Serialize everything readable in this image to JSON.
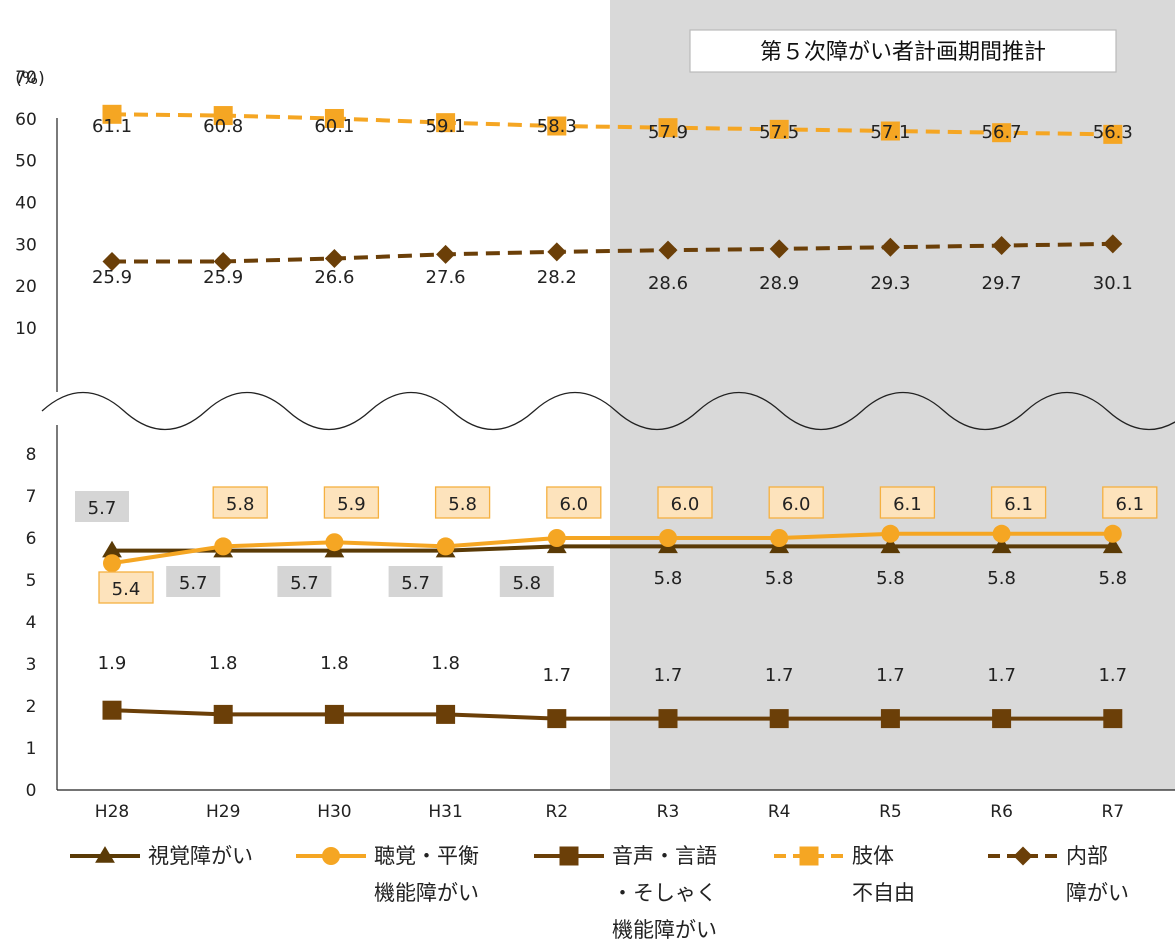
{
  "chart_data": {
    "type": "line",
    "title": "",
    "unit": "(%)",
    "projection_label": "第５次障がい者計画期間推計",
    "projection_start": "R3",
    "categories": [
      "H28",
      "H29",
      "H30",
      "H31",
      "R2",
      "R3",
      "R4",
      "R5",
      "R6",
      "R7"
    ],
    "y_ticks_upper": [
      "70",
      "60",
      "50",
      "40",
      "30",
      "20",
      "10"
    ],
    "y_ticks_lower": [
      "8",
      "7",
      "6",
      "5",
      "4",
      "3",
      "2",
      "1",
      "0"
    ],
    "axis_break": true,
    "series": [
      {
        "name": "視覚障がい",
        "legend_lines": [
          "視覚障がい"
        ],
        "color": "#5a3a06",
        "marker": "triangle",
        "dash": false,
        "panel": "lower",
        "values": [
          5.7,
          5.7,
          5.7,
          5.7,
          5.8,
          5.8,
          5.8,
          5.8,
          5.8,
          5.8
        ],
        "labels": [
          "5.7",
          "5.7",
          "5.7",
          "5.7",
          "5.8",
          "5.8",
          "5.8",
          "5.8",
          "5.8",
          "5.8"
        ]
      },
      {
        "name": "聴覚・平衡機能障がい",
        "legend_lines": [
          "聴覚・平衡",
          "機能障がい"
        ],
        "color": "#f5a623",
        "marker": "circle",
        "dash": false,
        "panel": "lower",
        "values": [
          5.4,
          5.8,
          5.9,
          5.8,
          6.0,
          6.0,
          6.0,
          6.1,
          6.1,
          6.1
        ],
        "labels": [
          "5.4",
          "5.8",
          "5.9",
          "5.8",
          "6.0",
          "6.0",
          "6.0",
          "6.1",
          "6.1",
          "6.1"
        ]
      },
      {
        "name": "音声・言語・そしゃく機能障がい",
        "legend_lines": [
          "音声・言語",
          "・そしゃく",
          "機能障がい"
        ],
        "color": "#6b3f08",
        "marker": "square",
        "dash": false,
        "panel": "lower",
        "values": [
          1.9,
          1.8,
          1.8,
          1.8,
          1.7,
          1.7,
          1.7,
          1.7,
          1.7,
          1.7
        ],
        "labels": [
          "1.9",
          "1.8",
          "1.8",
          "1.8",
          "1.7",
          "1.7",
          "1.7",
          "1.7",
          "1.7",
          "1.7"
        ]
      },
      {
        "name": "肢体不自由",
        "legend_lines": [
          "肢体",
          "不自由"
        ],
        "color": "#f5a623",
        "marker": "square",
        "dash": true,
        "panel": "upper",
        "values": [
          61.1,
          60.8,
          60.1,
          59.1,
          58.3,
          57.9,
          57.5,
          57.1,
          56.7,
          56.3
        ],
        "labels": [
          "61.1",
          "60.8",
          "60.1",
          "59.1",
          "58.3",
          "57.9",
          "57.5",
          "57.1",
          "56.7",
          "56.3"
        ]
      },
      {
        "name": "内部障がい",
        "legend_lines": [
          "内部",
          "障がい"
        ],
        "color": "#6b3f08",
        "marker": "diamond",
        "dash": true,
        "panel": "upper",
        "values": [
          25.9,
          25.9,
          26.6,
          27.6,
          28.2,
          28.6,
          28.9,
          29.3,
          29.7,
          30.1
        ],
        "labels": [
          "25.9",
          "25.9",
          "26.6",
          "27.6",
          "28.2",
          "28.6",
          "28.9",
          "29.3",
          "29.7",
          "30.1"
        ]
      }
    ],
    "grid": false,
    "legend_position": "bottom"
  }
}
